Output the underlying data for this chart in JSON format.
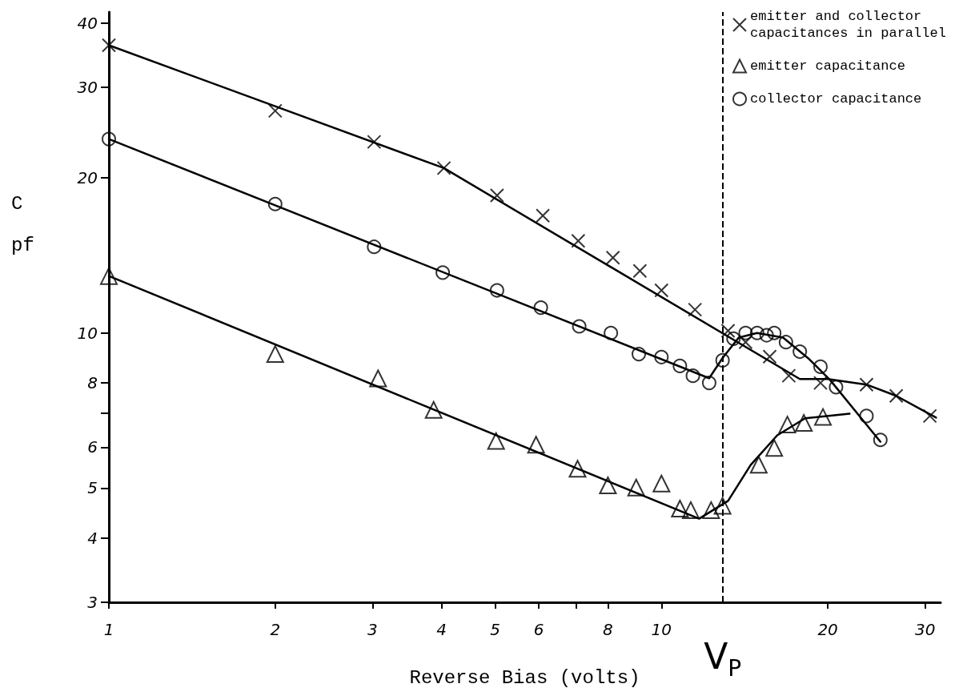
{
  "chart_data": {
    "type": "scatter",
    "xlabel": "Reverse Bias (volts)",
    "ylabel": "C pf",
    "log": "xy",
    "grid": false,
    "legend": "top right",
    "xlim": [
      1,
      32
    ],
    "ylim": [
      3,
      42
    ],
    "xticks": [
      1,
      2,
      3,
      4,
      5,
      6,
      {
        "value": 7,
        "label": null
      },
      8,
      10,
      20,
      30
    ],
    "yticks": [
      3,
      4,
      5,
      6,
      {
        "value": 7,
        "label": null
      },
      8,
      10,
      20,
      30,
      40
    ],
    "ref_lines": [
      {
        "axis": "x",
        "value": 12.9,
        "label": "V$_{P}$",
        "line_style": "dashed",
        "color": "#000000"
      }
    ],
    "series": [
      {
        "name": "emitter and collector capacitances in parallel",
        "marker": "cross",
        "color": "#000000",
        "x": [
          1,
          2,
          3.02,
          4.04,
          5.04,
          6.1,
          7.07,
          8.17,
          9.14,
          10,
          11.5,
          13.2,
          14.2,
          15.7,
          17,
          19.4,
          23.5,
          26.6,
          30.6
        ],
        "values": [
          36.2,
          27,
          23.5,
          20.9,
          18.5,
          16.9,
          15.1,
          14,
          13.2,
          12.1,
          11.1,
          10.1,
          9.6,
          9,
          8.26,
          8,
          7.94,
          7.55,
          6.9
        ]
      },
      {
        "name": "emitter capacitance",
        "marker": "triangle",
        "color": "#000000",
        "x": [
          1,
          2,
          3.07,
          3.87,
          5.02,
          5.93,
          7.05,
          8,
          9,
          10,
          10.8,
          11.3,
          12.3,
          12.9,
          15,
          16,
          16.9,
          18.1,
          19.6
        ],
        "values": [
          12.9,
          9.1,
          8.16,
          7.09,
          6.17,
          6.07,
          5.45,
          5.06,
          5.01,
          5.1,
          4.56,
          4.53,
          4.53,
          4.62,
          5.55,
          5.98,
          6.64,
          6.69,
          6.87
        ]
      },
      {
        "name": "collector capacitance",
        "marker": "circle",
        "color": "#000000",
        "x": [
          1,
          2,
          3.02,
          4.02,
          5.04,
          6.05,
          7.1,
          8.1,
          9.1,
          10,
          10.8,
          11.4,
          12.2,
          12.9,
          13.5,
          14.2,
          14.9,
          15.5,
          16,
          16.8,
          17.8,
          19.4,
          20.7,
          23.5,
          24.9
        ],
        "values": [
          23.8,
          17.8,
          14.7,
          13.1,
          12.1,
          11.2,
          10.3,
          10,
          9.1,
          8.98,
          8.63,
          8.26,
          8,
          8.85,
          9.75,
          10,
          10,
          9.9,
          10,
          9.6,
          9.2,
          8.6,
          7.85,
          6.9,
          6.2
        ]
      },
      {
        "type": "line",
        "marker": "none",
        "color": "#000000",
        "x": [
          1,
          4.04,
          17.8,
          20,
          23.5,
          26.6,
          31.4
        ],
        "values": [
          36.2,
          20.9,
          8.14,
          8.14,
          7.94,
          7.55,
          6.85
        ]
      },
      {
        "type": "line",
        "marker": "none",
        "color": "#000000",
        "x": [
          1,
          12.2,
          12.9,
          13.8,
          14.9,
          16.6,
          18.5,
          20.2,
          24.9
        ],
        "values": [
          23.8,
          8.17,
          8.94,
          9.8,
          10,
          9.8,
          8.9,
          8.1,
          6.15
        ]
      },
      {
        "type": "line",
        "marker": "none",
        "color": "#000000",
        "x": [
          1,
          11.7,
          13.2,
          14.5,
          16.2,
          18.2,
          21.9
        ],
        "values": [
          12.9,
          4.36,
          4.72,
          5.54,
          6.33,
          6.83,
          6.97
        ]
      }
    ]
  }
}
